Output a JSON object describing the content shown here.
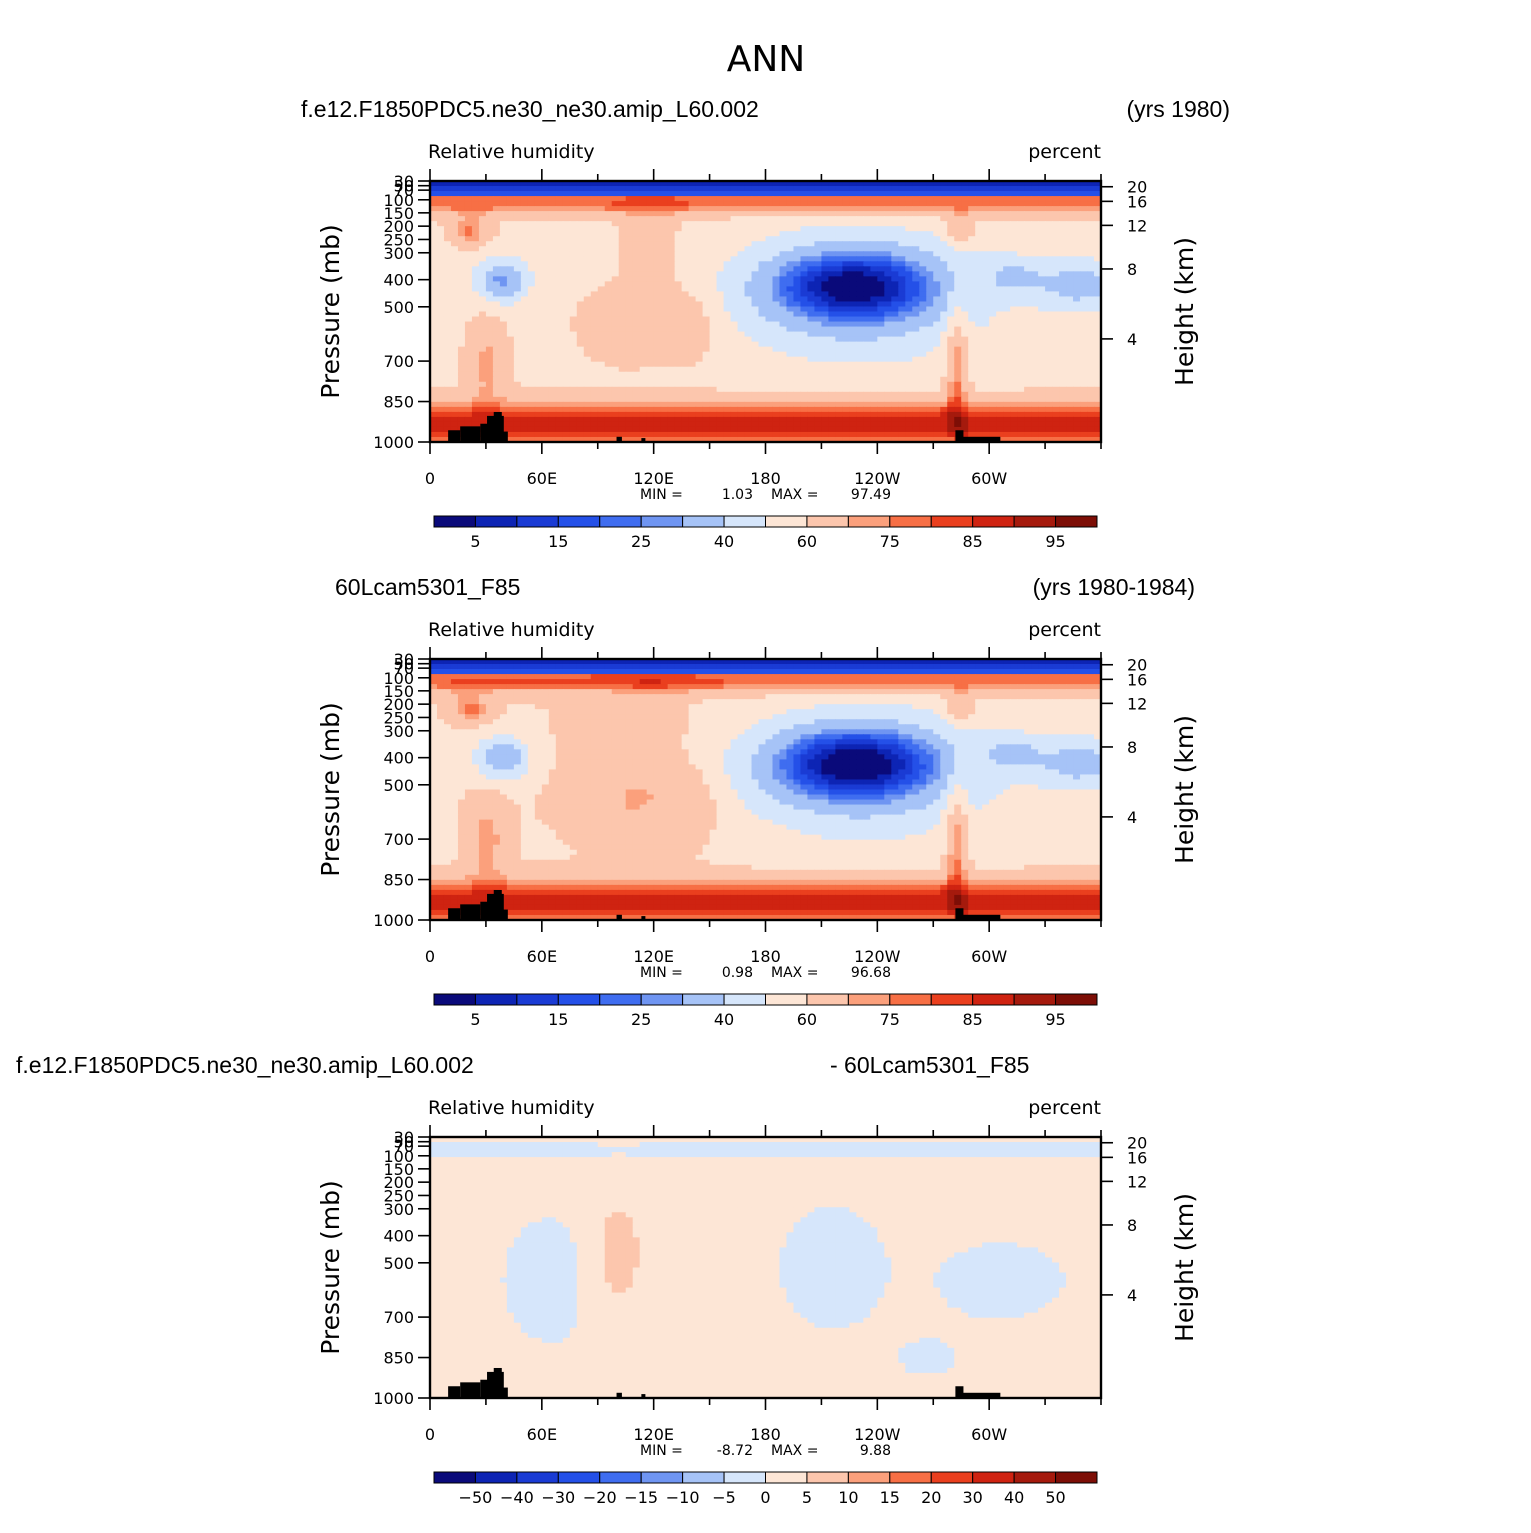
{
  "page": {
    "title": "ANN"
  },
  "chart_data": [
    {
      "type": "heatmap",
      "case_name": "f.e12.F1850PDC5.ne30_ne30.amip_L60.002",
      "years": "(yrs 1980)",
      "variable": "Relative humidity",
      "units": "percent",
      "ylabel": "Pressure (mb)",
      "y2label": "Height (km)",
      "x_ticks": [
        "0",
        "60E",
        "120E",
        "180",
        "120W",
        "60W"
      ],
      "y_ticks": [
        "30",
        "50",
        "70",
        "100",
        "150",
        "200",
        "250",
        "300",
        "400",
        "500",
        "700",
        "850",
        "1000"
      ],
      "y2_ticks": [
        "20",
        "16",
        "12",
        "8",
        "4"
      ],
      "min_label": "MIN =",
      "min_value": "1.03",
      "max_label": "MAX =",
      "max_value": "97.49",
      "colorbar": {
        "labels": [
          "5",
          "15",
          "25",
          "40",
          "60",
          "75",
          "85",
          "95"
        ],
        "levels": [
          5,
          10,
          15,
          20,
          25,
          30,
          40,
          50,
          60,
          70,
          75,
          80,
          85,
          90,
          95
        ],
        "colors": [
          "#0a0a7a",
          "#0d24b4",
          "#1a3bd4",
          "#2450e8",
          "#3f6df0",
          "#6f95f2",
          "#a6c3f7",
          "#d6e6fb",
          "#fde6d6",
          "#fcc6ad",
          "#fba07c",
          "#f76f45",
          "#ea3f1e",
          "#cf2311",
          "#a51a0d",
          "#7d0e06"
        ]
      }
    },
    {
      "type": "heatmap",
      "case_name": "60Lcam5301_F85",
      "years": "(yrs 1980-1984)",
      "variable": "Relative humidity",
      "units": "percent",
      "ylabel": "Pressure (mb)",
      "y2label": "Height (km)",
      "x_ticks": [
        "0",
        "60E",
        "120E",
        "180",
        "120W",
        "60W"
      ],
      "y_ticks": [
        "30",
        "50",
        "70",
        "100",
        "150",
        "200",
        "250",
        "300",
        "400",
        "500",
        "700",
        "850",
        "1000"
      ],
      "y2_ticks": [
        "20",
        "16",
        "12",
        "8",
        "4"
      ],
      "min_label": "MIN =",
      "min_value": "0.98",
      "max_label": "MAX =",
      "max_value": "96.68",
      "colorbar": {
        "labels": [
          "5",
          "15",
          "25",
          "40",
          "60",
          "75",
          "85",
          "95"
        ],
        "levels": [
          5,
          10,
          15,
          20,
          25,
          30,
          40,
          50,
          60,
          70,
          75,
          80,
          85,
          90,
          95
        ],
        "colors": [
          "#0a0a7a",
          "#0d24b4",
          "#1a3bd4",
          "#2450e8",
          "#3f6df0",
          "#6f95f2",
          "#a6c3f7",
          "#d6e6fb",
          "#fde6d6",
          "#fcc6ad",
          "#fba07c",
          "#f76f45",
          "#ea3f1e",
          "#cf2311",
          "#a51a0d",
          "#7d0e06"
        ]
      }
    },
    {
      "type": "heatmap",
      "case_name": "f.e12.F1850PDC5.ne30_ne30.amip_L60.002",
      "years": "- 60Lcam5301_F85",
      "variable": "Relative humidity",
      "units": "percent",
      "ylabel": "Pressure (mb)",
      "y2label": "Height (km)",
      "x_ticks": [
        "0",
        "60E",
        "120E",
        "180",
        "120W",
        "60W"
      ],
      "y_ticks": [
        "30",
        "50",
        "70",
        "100",
        "150",
        "200",
        "250",
        "300",
        "400",
        "500",
        "700",
        "850",
        "1000"
      ],
      "y2_ticks": [
        "20",
        "16",
        "12",
        "8",
        "4"
      ],
      "min_label": "MIN =",
      "min_value": "-8.72",
      "max_label": "MAX =",
      "max_value": "9.88",
      "colorbar": {
        "labels": [
          "-50",
          "-40",
          "-30",
          "-20",
          "-15",
          "-10",
          "-5",
          "0",
          "5",
          "10",
          "15",
          "20",
          "30",
          "40",
          "50"
        ],
        "levels": [
          -50,
          -40,
          -30,
          -20,
          -15,
          -10,
          -5,
          0,
          5,
          10,
          15,
          20,
          30,
          40,
          50
        ],
        "colors": [
          "#0a0a7a",
          "#0d24b4",
          "#1a3bd4",
          "#2450e8",
          "#3f6df0",
          "#6f95f2",
          "#a6c3f7",
          "#d6e6fb",
          "#fde6d6",
          "#fcc6ad",
          "#fba07c",
          "#f76f45",
          "#ea3f1e",
          "#cf2311",
          "#a51a0d",
          "#7d0e06"
        ]
      }
    }
  ]
}
